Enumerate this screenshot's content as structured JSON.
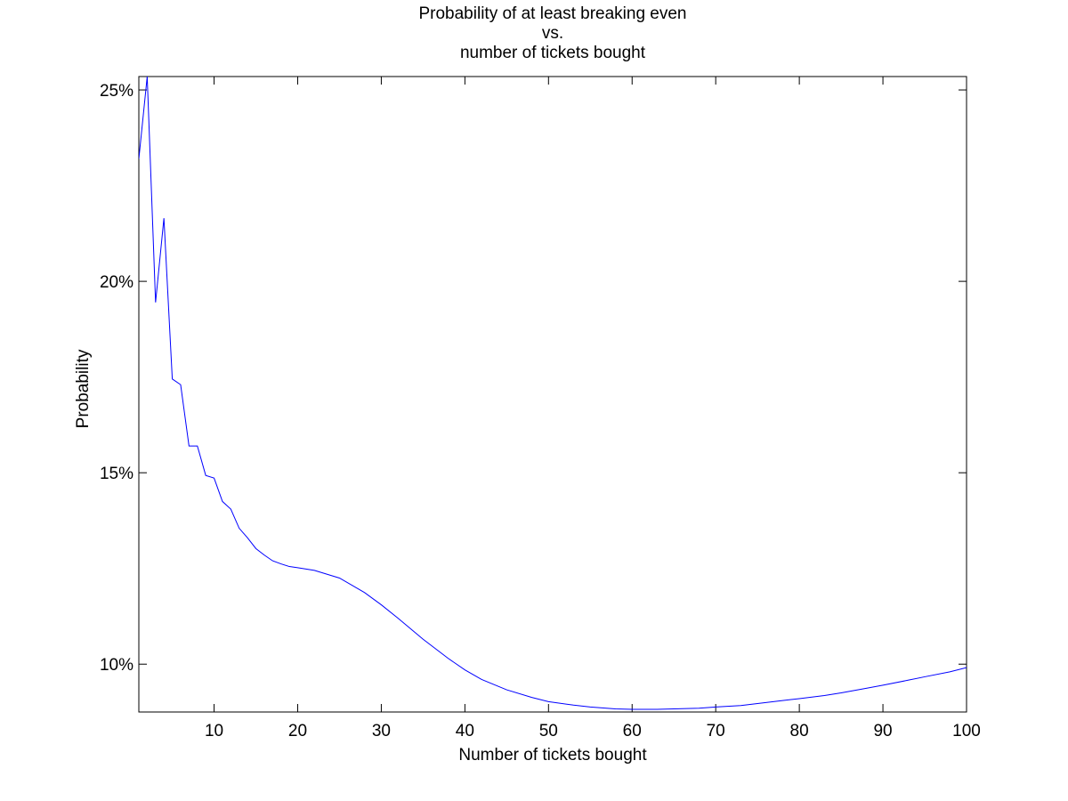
{
  "chart_data": {
    "type": "line",
    "title": [
      "Probability of at least breaking even",
      "vs.",
      "number of tickets bought"
    ],
    "xlabel": "Number of tickets bought",
    "ylabel": "Probability",
    "xlim": [
      1,
      100
    ],
    "ylim": [
      0.0875,
      0.2535
    ],
    "xticks": [
      10,
      20,
      30,
      40,
      50,
      60,
      70,
      80,
      90,
      100
    ],
    "xtick_labels": [
      "10",
      "20",
      "30",
      "40",
      "50",
      "60",
      "70",
      "80",
      "90",
      "100"
    ],
    "yticks": [
      0.1,
      0.15,
      0.2,
      0.25
    ],
    "ytick_labels": [
      "10%",
      "15%",
      "20%",
      "25%"
    ],
    "grid": false,
    "line_color": "#0000ff",
    "series": [
      {
        "x": [
          1,
          2,
          3,
          4,
          5,
          6,
          7,
          8,
          9,
          10,
          11,
          12,
          13,
          14,
          15,
          16,
          17,
          18,
          19,
          20,
          22,
          25,
          28,
          30,
          32,
          35,
          38,
          40,
          42,
          45,
          48,
          50,
          53,
          55,
          58,
          60,
          63,
          65,
          68,
          70,
          73,
          75,
          78,
          80,
          83,
          85,
          88,
          90,
          93,
          95,
          98,
          100
        ],
        "y": [
          0.232,
          0.2535,
          0.1945,
          0.2165,
          0.1745,
          0.173,
          0.157,
          0.157,
          0.1493,
          0.1486,
          0.1425,
          0.1405,
          0.1355,
          0.133,
          0.1302,
          0.1285,
          0.127,
          0.1262,
          0.1255,
          0.1252,
          0.1245,
          0.1225,
          0.1187,
          0.1155,
          0.112,
          0.1065,
          0.1015,
          0.0985,
          0.096,
          0.0933,
          0.0913,
          0.0902,
          0.0893,
          0.0888,
          0.0883,
          0.0882,
          0.0882,
          0.0883,
          0.0885,
          0.0888,
          0.0892,
          0.0897,
          0.0905,
          0.091,
          0.0918,
          0.0925,
          0.0937,
          0.0945,
          0.0958,
          0.0967,
          0.098,
          0.0991
        ]
      }
    ]
  }
}
